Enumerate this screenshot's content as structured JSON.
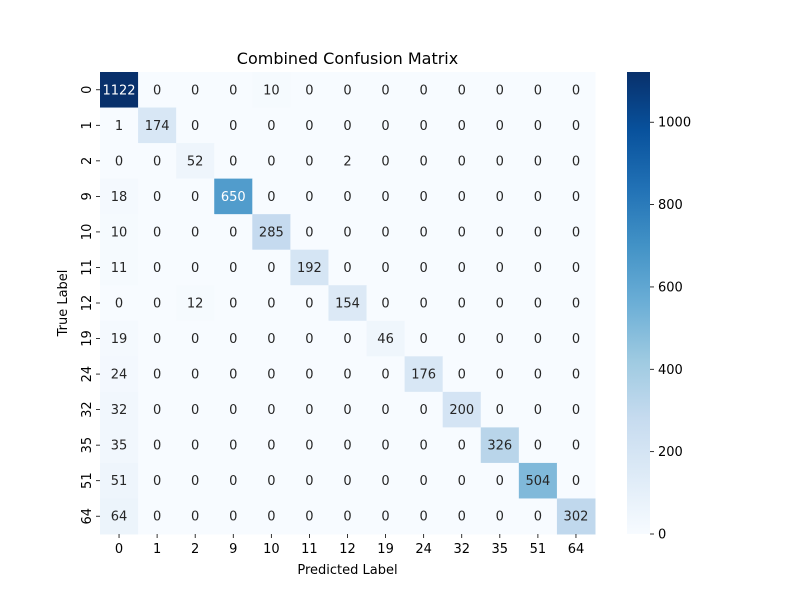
{
  "chart_data": {
    "type": "heatmap",
    "title": "Combined Confusion Matrix",
    "xlabel": "Predicted Label",
    "ylabel": "True Label",
    "x_labels": [
      "0",
      "1",
      "2",
      "9",
      "10",
      "11",
      "12",
      "19",
      "24",
      "32",
      "35",
      "51",
      "64"
    ],
    "y_labels": [
      "0",
      "1",
      "2",
      "9",
      "10",
      "11",
      "12",
      "19",
      "24",
      "32",
      "35",
      "51",
      "64"
    ],
    "matrix": [
      [
        1122,
        0,
        0,
        0,
        10,
        0,
        0,
        0,
        0,
        0,
        0,
        0,
        0
      ],
      [
        1,
        174,
        0,
        0,
        0,
        0,
        0,
        0,
        0,
        0,
        0,
        0,
        0
      ],
      [
        0,
        0,
        52,
        0,
        0,
        0,
        2,
        0,
        0,
        0,
        0,
        0,
        0
      ],
      [
        18,
        0,
        0,
        650,
        0,
        0,
        0,
        0,
        0,
        0,
        0,
        0,
        0
      ],
      [
        10,
        0,
        0,
        0,
        285,
        0,
        0,
        0,
        0,
        0,
        0,
        0,
        0
      ],
      [
        11,
        0,
        0,
        0,
        0,
        192,
        0,
        0,
        0,
        0,
        0,
        0,
        0
      ],
      [
        0,
        0,
        12,
        0,
        0,
        0,
        154,
        0,
        0,
        0,
        0,
        0,
        0
      ],
      [
        19,
        0,
        0,
        0,
        0,
        0,
        0,
        46,
        0,
        0,
        0,
        0,
        0
      ],
      [
        24,
        0,
        0,
        0,
        0,
        0,
        0,
        0,
        176,
        0,
        0,
        0,
        0
      ],
      [
        32,
        0,
        0,
        0,
        0,
        0,
        0,
        0,
        0,
        200,
        0,
        0,
        0
      ],
      [
        35,
        0,
        0,
        0,
        0,
        0,
        0,
        0,
        0,
        0,
        326,
        0,
        0
      ],
      [
        51,
        0,
        0,
        0,
        0,
        0,
        0,
        0,
        0,
        0,
        0,
        504,
        0
      ],
      [
        64,
        0,
        0,
        0,
        0,
        0,
        0,
        0,
        0,
        0,
        0,
        0,
        302
      ]
    ],
    "colormap": "Blues",
    "vmin": 0,
    "vmax": 1122,
    "colorbar_ticks": [
      0,
      200,
      400,
      600,
      800,
      1000
    ],
    "grid": false
  }
}
